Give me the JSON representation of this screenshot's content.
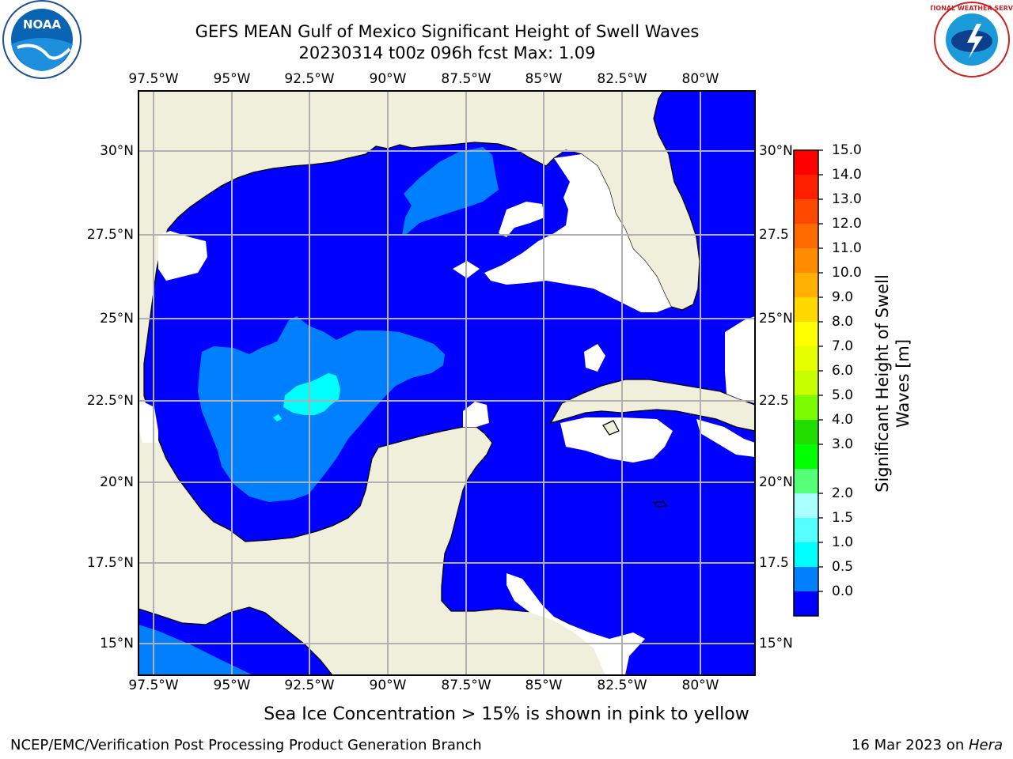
{
  "title_line1": "GEFS MEAN Gulf of Mexico Significant Height of Swell Waves",
  "title_line2": "20230314 t00z 096h fcst   Max: 1.09",
  "lon_labels": [
    "97.5°W",
    "95°W",
    "92.5°W",
    "90°W",
    "87.5°W",
    "85°W",
    "82.5°W",
    "80°W"
  ],
  "lat_labels": [
    "30°N",
    "27.5°N",
    "25°N",
    "22.5°N",
    "20°N",
    "17.5°N",
    "15°N"
  ],
  "lat_labels_right": [
    "30°N",
    "27.5",
    "25°N",
    "22.5",
    "20°N",
    "17.5",
    "15°N"
  ],
  "colorbar": {
    "label": "Significant Height of Swell Waves [m]",
    "ticks": [
      "15.0",
      "14.0",
      "13.0",
      "12.0",
      "11.0",
      "10.0",
      "9.0",
      "8.0",
      "7.0",
      "6.0",
      "5.0",
      "4.0",
      "3.0",
      "2.0",
      "1.5",
      "1.0",
      "0.5",
      "0.0"
    ],
    "colors_top_to_bottom": [
      "#ff0000",
      "#ff2000",
      "#ff4800",
      "#ff6a00",
      "#ff8c00",
      "#ffb000",
      "#ffd800",
      "#ffff00",
      "#e6ff00",
      "#c8ff00",
      "#7cfc00",
      "#22dd00",
      "#00ff00",
      "#55ff77",
      "#aaffff",
      "#55ffff",
      "#00ffff",
      "#0080ff",
      "#0000ff"
    ]
  },
  "note": "Sea Ice Concentration > 15% is shown in pink to yellow",
  "footer_left": "NCEP/EMC/Verification Post Processing Product Generation Branch",
  "footer_right_prefix": "16 Mar 2023 on ",
  "footer_right_host": "Hera",
  "logos": {
    "left": "NOAA",
    "right": "NATIONAL WEATHER SERVICE"
  },
  "colors": {
    "land": "#efefdc",
    "swell_0": "#0000ff",
    "swell_05": "#0080ff",
    "swell_1": "#00ffff",
    "grid": "#b0b0b0"
  }
}
